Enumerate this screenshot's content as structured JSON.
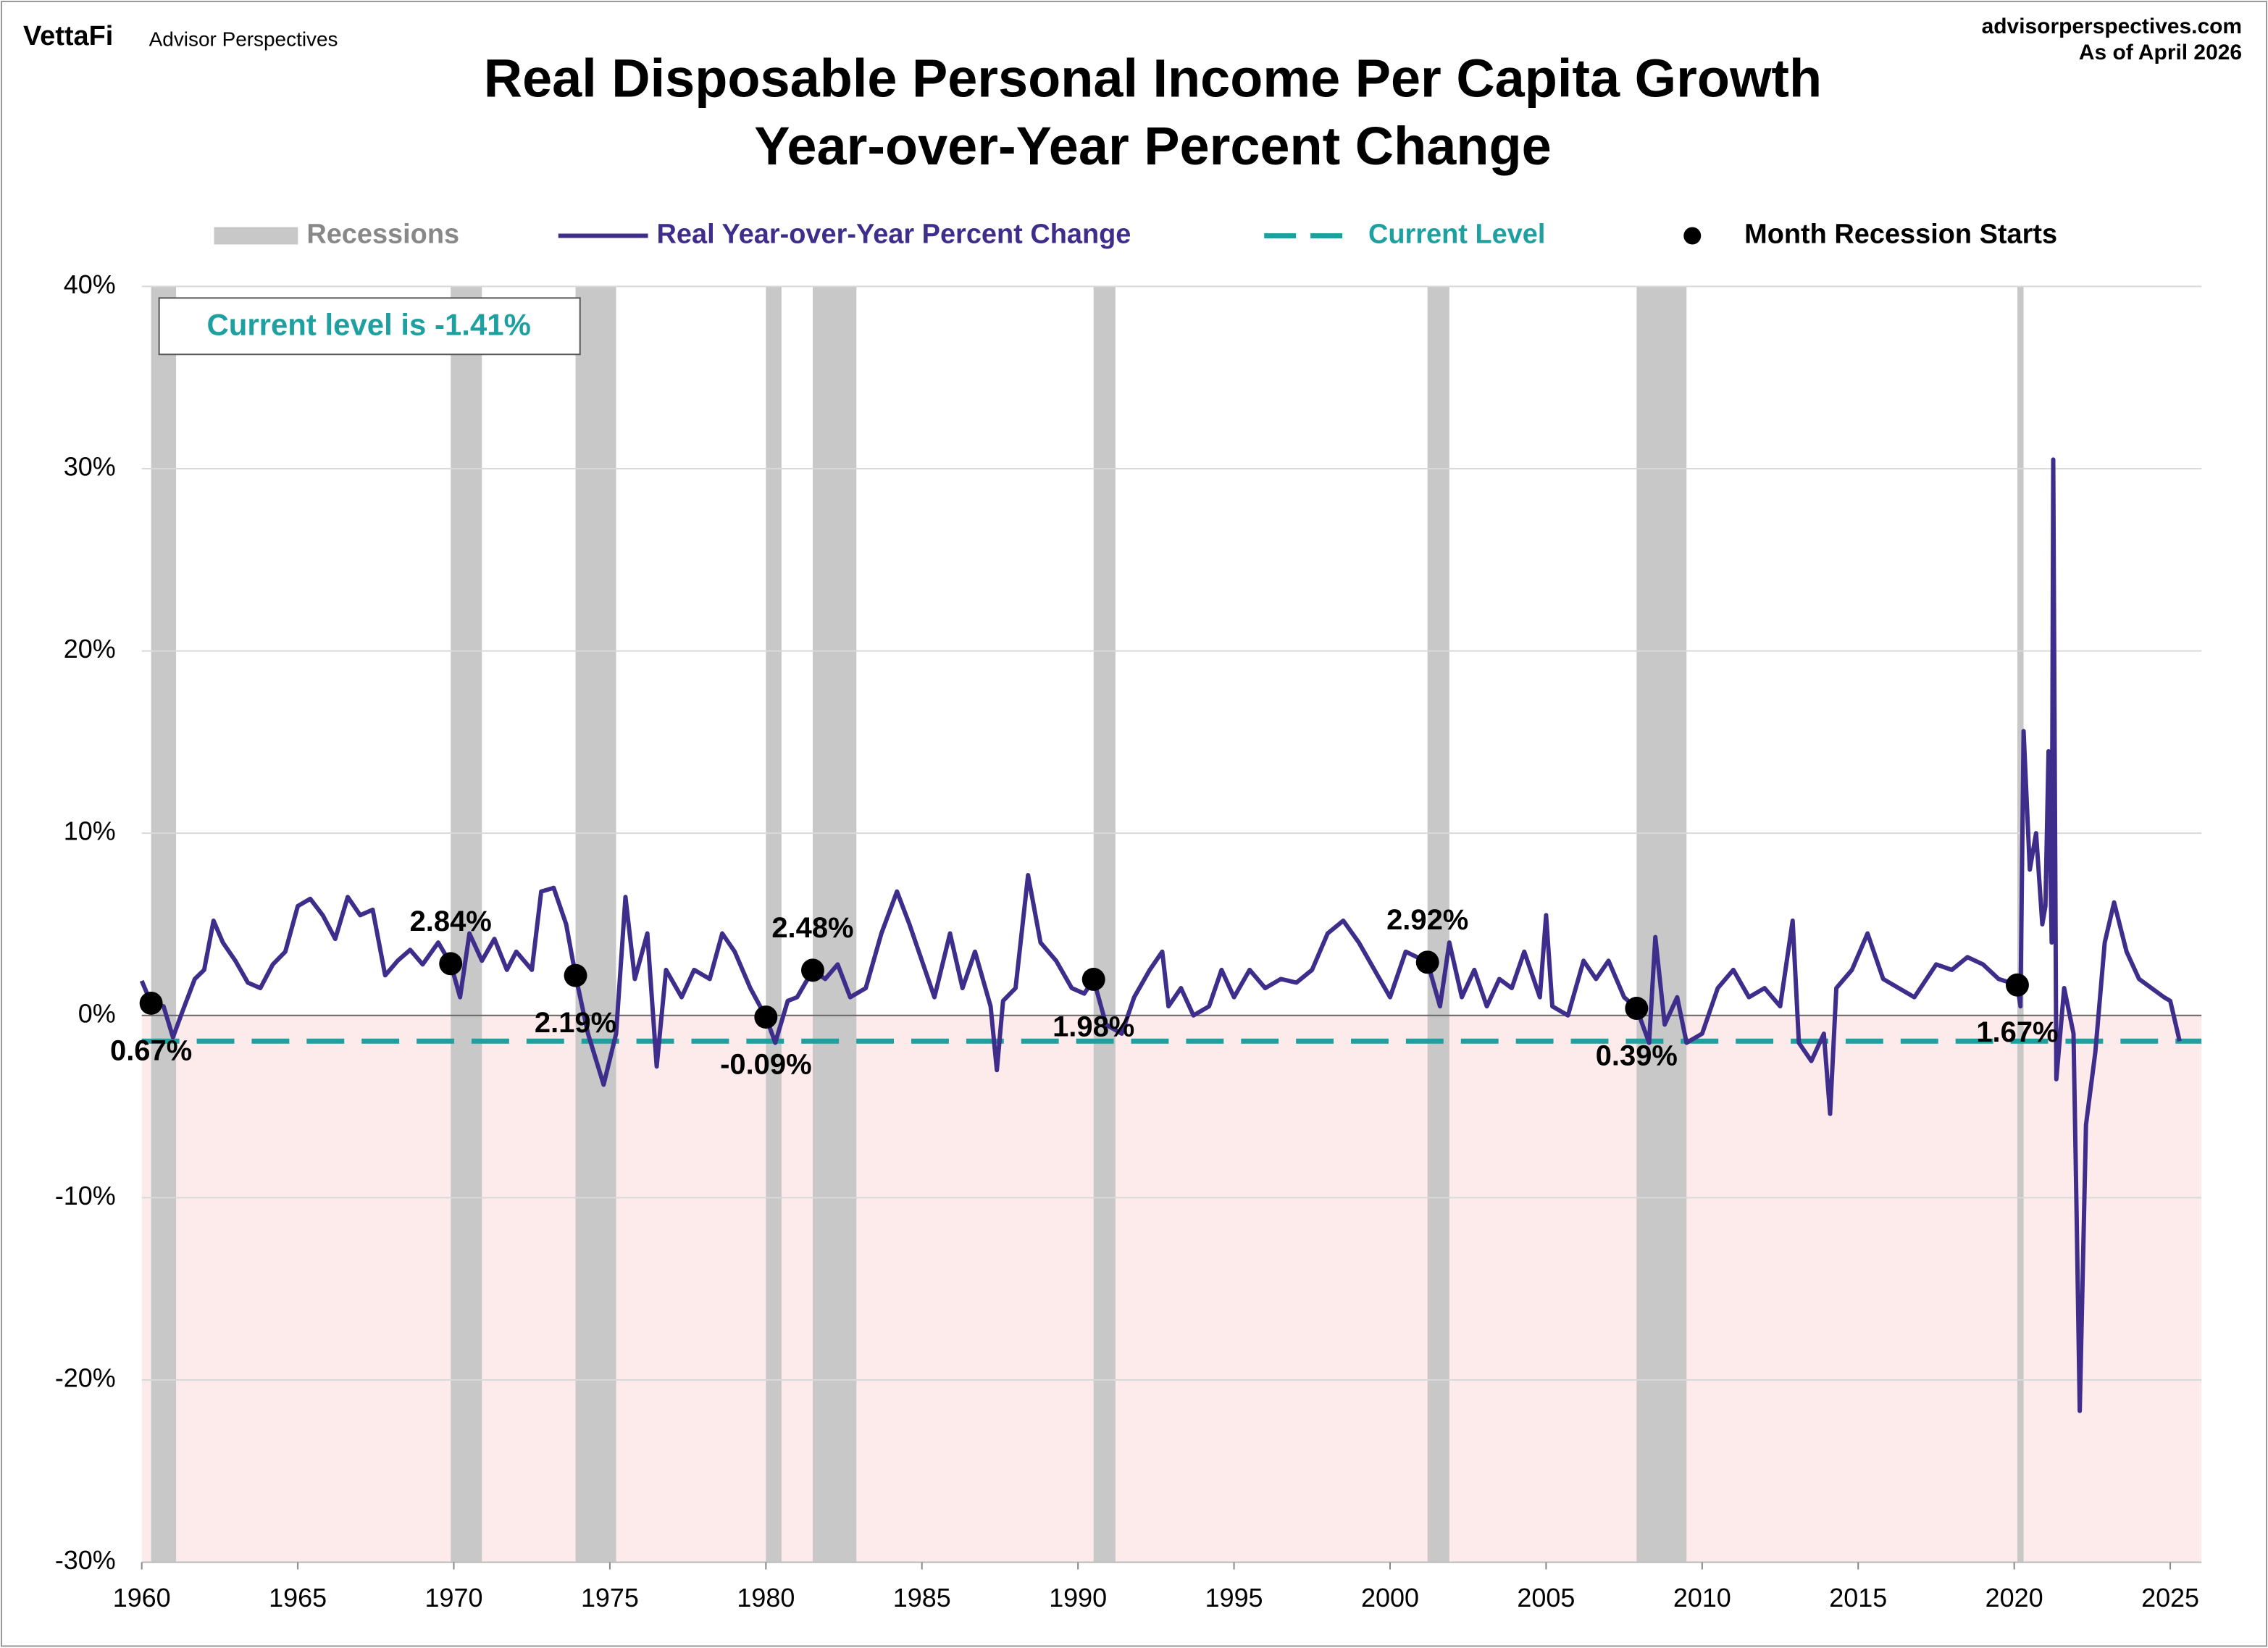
{
  "chart_data": {
    "type": "line",
    "brand": "VettaFi",
    "brand_sub": "Advisor Perspectives",
    "source": "advisorperspectives.com",
    "as_of": "As of April 2026",
    "title": "Real Disposable Personal Income Per Capita Growth",
    "subtitle": "Year-over-Year Percent Change",
    "annotation": "Current level is -1.41%",
    "xlim": [
      1960,
      2026
    ],
    "xticks": [
      1960,
      1965,
      1970,
      1975,
      1980,
      1985,
      1990,
      1995,
      2000,
      2005,
      2010,
      2015,
      2020,
      2025
    ],
    "ylim": [
      -30,
      40
    ],
    "yticks": [
      {
        "value": 40,
        "label": "40%"
      },
      {
        "value": 30,
        "label": "30%"
      },
      {
        "value": 20,
        "label": "20%"
      },
      {
        "value": 10,
        "label": "10%"
      },
      {
        "value": 0,
        "label": "0%"
      },
      {
        "value": -10,
        "label": "-10%"
      },
      {
        "value": -20,
        "label": "-20%"
      },
      {
        "value": -30,
        "label": "-30%"
      }
    ],
    "grid": true,
    "recessions": {
      "name": "Recessions",
      "color": "#c8c8c8",
      "periods": [
        [
          1960.3,
          1961.1
        ],
        [
          1969.9,
          1970.9
        ],
        [
          1973.9,
          1975.2
        ],
        [
          1980.0,
          1980.5
        ],
        [
          1981.5,
          1982.9
        ],
        [
          1990.5,
          1991.2
        ],
        [
          2001.2,
          2001.9
        ],
        [
          2007.9,
          2009.5
        ],
        [
          2020.1,
          2020.3
        ]
      ]
    },
    "series": [
      {
        "name": "Real Year-over-Year Percent Change",
        "color": "#3f2d8c",
        "x": [
          1960.0,
          1960.3,
          1960.7,
          1961.0,
          1961.3,
          1961.7,
          1962.0,
          1962.3,
          1962.6,
          1963.0,
          1963.4,
          1963.8,
          1964.2,
          1964.6,
          1965.0,
          1965.4,
          1965.8,
          1966.2,
          1966.6,
          1967.0,
          1967.4,
          1967.8,
          1968.2,
          1968.6,
          1969.0,
          1969.5,
          1969.9,
          1970.2,
          1970.5,
          1970.9,
          1971.3,
          1971.7,
          1972.0,
          1972.5,
          1972.8,
          1973.2,
          1973.6,
          1973.9,
          1974.3,
          1974.8,
          1975.2,
          1975.5,
          1975.8,
          1976.2,
          1976.5,
          1976.8,
          1977.3,
          1977.7,
          1978.2,
          1978.6,
          1979.0,
          1979.5,
          1980.0,
          1980.3,
          1980.7,
          1981.0,
          1981.5,
          1981.9,
          1982.3,
          1982.7,
          1983.2,
          1983.7,
          1984.2,
          1984.6,
          1985.0,
          1985.4,
          1985.9,
          1986.3,
          1986.7,
          1987.2,
          1987.4,
          1987.6,
          1988.0,
          1988.4,
          1988.8,
          1989.3,
          1989.8,
          1990.2,
          1990.5,
          1990.9,
          1991.4,
          1991.8,
          1992.3,
          1992.7,
          1992.9,
          1993.3,
          1993.7,
          1994.2,
          1994.6,
          1995.0,
          1995.5,
          1996.0,
          1996.5,
          1997.0,
          1997.5,
          1998.0,
          1998.5,
          1999.0,
          1999.5,
          2000.0,
          2000.5,
          2001.2,
          2001.6,
          2001.9,
          2002.3,
          2002.7,
          2003.1,
          2003.5,
          2003.9,
          2004.3,
          2004.8,
          2005.0,
          2005.2,
          2005.7,
          2006.2,
          2006.6,
          2007.0,
          2007.5,
          2007.9,
          2008.3,
          2008.5,
          2008.8,
          2009.2,
          2009.5,
          2010.0,
          2010.5,
          2011.0,
          2011.5,
          2012.0,
          2012.5,
          2012.9,
          2013.1,
          2013.5,
          2013.9,
          2014.1,
          2014.3,
          2014.8,
          2015.3,
          2015.8,
          2016.3,
          2016.8,
          2017.5,
          2018.0,
          2018.5,
          2019.0,
          2019.5,
          2020.1,
          2020.2,
          2020.3,
          2020.5,
          2020.7,
          2020.9,
          2021.0,
          2021.1,
          2021.2,
          2021.25,
          2021.35,
          2021.6,
          2021.9,
          2022.0,
          2022.1,
          2022.3,
          2022.6,
          2022.9,
          2023.2,
          2023.6,
          2024.0,
          2024.4,
          2024.8,
          2025.0,
          2025.3
        ],
        "values": [
          1.9,
          0.67,
          0.5,
          -1.2,
          0.2,
          2.0,
          2.5,
          5.2,
          4.0,
          3.0,
          1.8,
          1.5,
          2.8,
          3.5,
          6.0,
          6.4,
          5.5,
          4.2,
          6.5,
          5.5,
          5.8,
          2.2,
          3.0,
          3.6,
          2.8,
          4.0,
          2.84,
          1.0,
          4.5,
          3.0,
          4.2,
          2.5,
          3.5,
          2.5,
          6.8,
          7.0,
          5.0,
          2.19,
          -1.0,
          -3.8,
          -1.0,
          6.5,
          2.0,
          4.5,
          -2.8,
          2.5,
          1.0,
          2.5,
          2.0,
          4.5,
          3.5,
          1.5,
          -0.09,
          -1.5,
          0.8,
          1.0,
          2.48,
          2.0,
          2.8,
          1.0,
          1.5,
          4.5,
          6.8,
          5.0,
          3.0,
          1.0,
          4.5,
          1.5,
          3.5,
          0.5,
          -3.0,
          0.8,
          1.5,
          7.7,
          4.0,
          3.0,
          1.5,
          1.2,
          1.98,
          -0.5,
          -1.0,
          1.0,
          2.5,
          3.5,
          0.5,
          1.5,
          0.0,
          0.5,
          2.5,
          1.0,
          2.5,
          1.5,
          2.0,
          1.8,
          2.5,
          4.5,
          5.2,
          4.0,
          2.5,
          1.0,
          3.5,
          2.92,
          0.5,
          4.0,
          1.0,
          2.5,
          0.5,
          2.0,
          1.5,
          3.5,
          1.0,
          5.5,
          0.5,
          0.0,
          3.0,
          2.0,
          3.0,
          1.0,
          0.39,
          -1.5,
          4.3,
          -0.5,
          1.0,
          -1.5,
          -1.0,
          1.5,
          2.5,
          1.0,
          1.5,
          0.5,
          5.2,
          -1.5,
          -2.5,
          -1.0,
          -5.4,
          1.5,
          2.5,
          4.5,
          2.0,
          1.5,
          1.0,
          2.8,
          2.5,
          3.2,
          2.8,
          2.0,
          1.67,
          0.5,
          15.6,
          8.0,
          10.0,
          5.0,
          6.0,
          14.5,
          4.0,
          30.5,
          -3.5,
          1.5,
          -1.0,
          -11.0,
          -21.7,
          -6.0,
          -2.0,
          4.0,
          6.2,
          3.5,
          2.0,
          1.5,
          1.0,
          0.8,
          -1.41
        ]
      }
    ],
    "current_level": {
      "name": "Current Level",
      "color": "#1fa0a0",
      "value": -1.41
    },
    "recession_starts": {
      "name": "Month Recession Starts",
      "color": "#000000",
      "x": [
        1960.3,
        1969.9,
        1973.9,
        1980.0,
        1981.5,
        1990.5,
        2001.2,
        2007.9,
        2020.1
      ],
      "values": [
        0.67,
        2.84,
        2.19,
        -0.09,
        2.48,
        1.98,
        2.92,
        0.39,
        1.67
      ],
      "value_labels": [
        "0.67%",
        "2.84%",
        "2.19%",
        "-0.09%",
        "2.48%",
        "1.98%",
        "2.92%",
        "0.39%",
        "1.67%"
      ]
    }
  }
}
